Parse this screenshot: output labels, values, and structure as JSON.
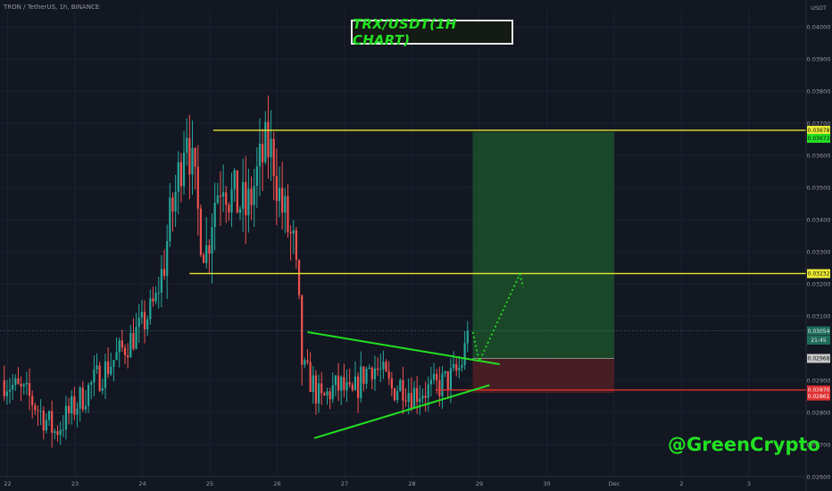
{
  "header": {
    "symbol_text": "TRON / TetherUS, 1h, BINANCE"
  },
  "overlay": {
    "title": "TRX/USDT(1H CHART)",
    "brand": "@GreenCrypto"
  },
  "chart_data": {
    "type": "candlestick",
    "currency": "USDT",
    "ylim": [
      0.026,
      0.0405
    ],
    "y_ticks": [
      {
        "value": 0.04,
        "label": "0.04000"
      },
      {
        "value": 0.039,
        "label": "0.03900"
      },
      {
        "value": 0.038,
        "label": "0.03800"
      },
      {
        "value": 0.037,
        "label": "0.03700"
      },
      {
        "value": 0.036,
        "label": "0.03600"
      },
      {
        "value": 0.035,
        "label": "0.03500"
      },
      {
        "value": 0.034,
        "label": "0.03400"
      },
      {
        "value": 0.033,
        "label": "0.03300"
      },
      {
        "value": 0.032,
        "label": "0.03200"
      },
      {
        "value": 0.031,
        "label": "0.03100"
      },
      {
        "value": 0.029,
        "label": "0.02900"
      },
      {
        "value": 0.028,
        "label": "0.02800"
      },
      {
        "value": 0.027,
        "label": "0.02700"
      },
      {
        "value": 0.026,
        "label": "0.02600"
      }
    ],
    "x_ticks": [
      {
        "day": 22,
        "label": "22"
      },
      {
        "day": 23,
        "label": "23"
      },
      {
        "day": 24,
        "label": "24"
      },
      {
        "day": 25,
        "label": "25"
      },
      {
        "day": 26,
        "label": "26"
      },
      {
        "day": 27,
        "label": "27"
      },
      {
        "day": 28,
        "label": "28"
      },
      {
        "day": 29,
        "label": "29"
      },
      {
        "day": 30,
        "label": "30"
      },
      {
        "day": 31,
        "label": "Dec"
      },
      {
        "day": 32,
        "label": "2"
      },
      {
        "day": 33,
        "label": "3"
      }
    ],
    "x_anchors": [
      [
        21.95,
        0.029
      ],
      [
        22.35,
        0.0284
      ],
      [
        22.7,
        0.0274
      ],
      [
        23.0,
        0.0282
      ],
      [
        23.3,
        0.029
      ],
      [
        23.6,
        0.0297
      ],
      [
        23.8,
        0.0302
      ],
      [
        24.0,
        0.0307
      ],
      [
        24.2,
        0.0315
      ],
      [
        24.3,
        0.0325
      ],
      [
        24.42,
        0.034
      ],
      [
        24.55,
        0.0355
      ],
      [
        24.65,
        0.0372
      ],
      [
        24.72,
        0.0358
      ],
      [
        24.82,
        0.0342
      ],
      [
        24.95,
        0.033
      ],
      [
        25.05,
        0.0345
      ],
      [
        25.2,
        0.0355
      ],
      [
        25.3,
        0.0347
      ],
      [
        25.45,
        0.0345
      ],
      [
        25.55,
        0.0342
      ],
      [
        25.65,
        0.035
      ],
      [
        25.75,
        0.0357
      ],
      [
        25.85,
        0.0363
      ],
      [
        25.95,
        0.0359
      ],
      [
        26.05,
        0.0345
      ],
      [
        26.15,
        0.0338
      ],
      [
        26.25,
        0.033
      ],
      [
        26.32,
        0.031
      ],
      [
        26.38,
        0.0293
      ],
      [
        26.5,
        0.029
      ],
      [
        26.65,
        0.0283
      ],
      [
        26.8,
        0.0287
      ],
      [
        26.95,
        0.0288
      ],
      [
        27.1,
        0.0284
      ],
      [
        27.25,
        0.0291
      ],
      [
        27.4,
        0.0295
      ],
      [
        27.55,
        0.0292
      ],
      [
        27.7,
        0.0287
      ],
      [
        27.85,
        0.0289
      ],
      [
        28.0,
        0.0286
      ],
      [
        28.15,
        0.0287
      ],
      [
        28.3,
        0.0287
      ],
      [
        28.45,
        0.0289
      ],
      [
        28.6,
        0.0291
      ],
      [
        28.72,
        0.0294
      ],
      [
        28.8,
        0.0301
      ],
      [
        28.86,
        0.0304
      ]
    ],
    "candles": [
      {
        "label": "last",
        "close": 0.03054
      }
    ],
    "horizontal_lines": [
      {
        "name": "resistance",
        "price": 0.03678,
        "color": "#e8e832",
        "x_start": 25.05
      },
      {
        "name": "breakout",
        "price": 0.03232,
        "color": "#e8e832",
        "x_start": 24.7
      },
      {
        "name": "stop",
        "price": 0.0287,
        "color": "#e03030",
        "x_start": 28.35
      }
    ],
    "position": {
      "type": "long",
      "x_start": 28.9,
      "x_end": 31.0,
      "entry": 0.02968,
      "target": 0.03673,
      "stop": 0.02861,
      "profit_color": "#1b4a2a",
      "loss_color": "#4a1f24"
    },
    "triangle": {
      "upper": [
        [
          26.45,
          0.0305
        ],
        [
          29.3,
          0.0295
        ]
      ],
      "lower": [
        [
          26.55,
          0.0272
        ],
        [
          29.15,
          0.02885
        ]
      ],
      "color": "#22e022"
    },
    "projection": {
      "points": [
        [
          28.9,
          0.0305
        ],
        [
          29.0,
          0.0296
        ],
        [
          29.6,
          0.0323
        ],
        [
          29.65,
          0.0319
        ]
      ],
      "color": "#22e022"
    },
    "price_tags": [
      {
        "label": "0.03678",
        "price": 0.03678,
        "bg": "#ebeb34",
        "fg": "#111111"
      },
      {
        "label": "0.03673",
        "price": 0.03653,
        "bg": "#25e025",
        "fg": "#111111"
      },
      {
        "label": "0.03232",
        "price": 0.03232,
        "bg": "#ebeb34",
        "fg": "#111111"
      },
      {
        "label": "0.03054",
        "price": 0.03054,
        "bg": "#1e6b5a",
        "fg": "#e8e8e8"
      },
      {
        "label": "21:45",
        "price": 0.03025,
        "bg": "#1e6b5a",
        "fg": "#e8e8e8"
      },
      {
        "label": "0.02968",
        "price": 0.02968,
        "bg": "#c8c8c8",
        "fg": "#111111"
      },
      {
        "label": "0.02870",
        "price": 0.0287,
        "bg": "#e03030",
        "fg": "#ffffff"
      },
      {
        "label": "0.02861",
        "price": 0.02851,
        "bg": "#e03030",
        "fg": "#ffffff"
      }
    ],
    "colors": {
      "up": "#26a69a",
      "down": "#ef5350",
      "background": "#131722",
      "text": "#9598a1"
    }
  }
}
